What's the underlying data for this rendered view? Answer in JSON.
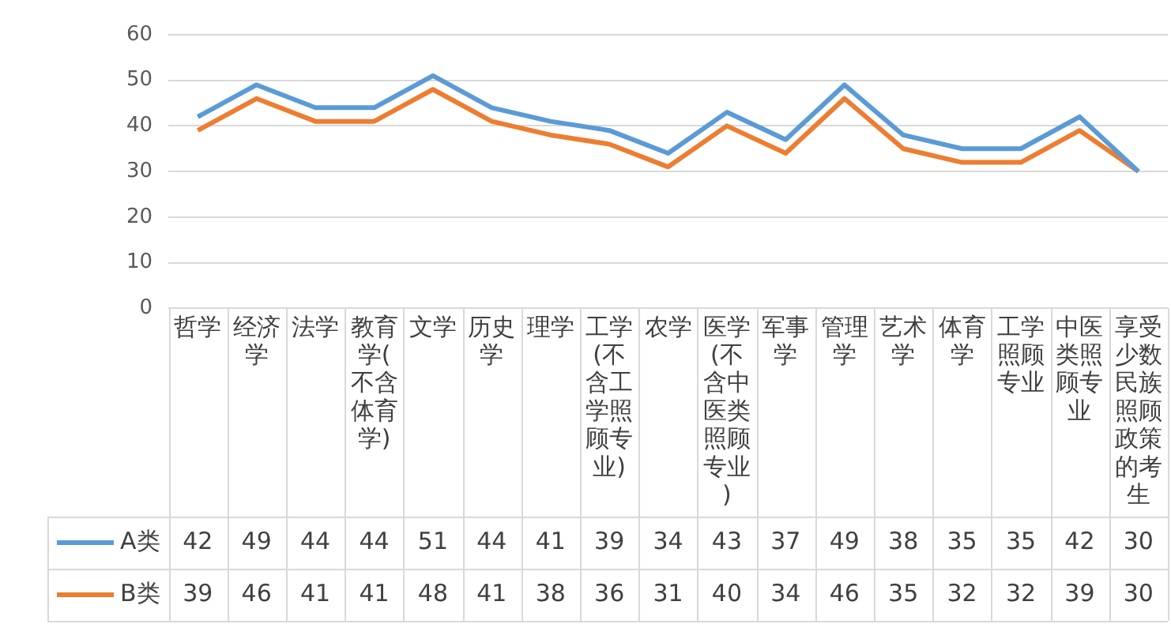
{
  "chart_data": {
    "type": "line",
    "categories": [
      "哲学",
      "经济学",
      "法学",
      "教育学(不含体育学)",
      "文学",
      "历史学",
      "理学",
      "工学(不含工学照顾专业)",
      "农学",
      "医学(不含中医类照顾专业)",
      "军事学",
      "管理学",
      "艺术学",
      "体育学",
      "工学照顾专业",
      "中医类照顾专业",
      "享受少数民族照顾政策的考生"
    ],
    "series": [
      {
        "name": "A类",
        "color": "#5b9bd5",
        "values": [
          42,
          49,
          44,
          44,
          51,
          44,
          41,
          39,
          34,
          43,
          37,
          49,
          38,
          35,
          35,
          42,
          30
        ]
      },
      {
        "name": "B类",
        "color": "#ed7d31",
        "values": [
          39,
          46,
          41,
          41,
          48,
          41,
          38,
          36,
          31,
          40,
          34,
          46,
          35,
          32,
          32,
          39,
          30
        ]
      }
    ],
    "ylim": [
      0,
      60
    ],
    "yticks": [
      0,
      10,
      20,
      30,
      40,
      50,
      60
    ],
    "grid": "y",
    "legend": "bottom",
    "data_labels": true,
    "marker": "none",
    "line_style": "solid"
  }
}
